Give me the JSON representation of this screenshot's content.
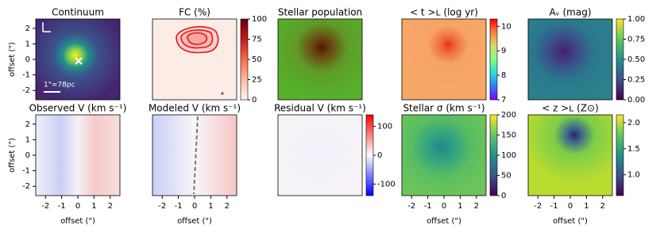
{
  "chart_data": [
    {
      "type": "image",
      "title": "Continuum",
      "ylabel": "offset (\")",
      "xlim": [
        -2.6,
        2.6
      ],
      "ylim": [
        -2.6,
        2.6
      ],
      "yticks": [
        -2,
        -1,
        0,
        1,
        2
      ],
      "annotations": [
        "1\"=78pc"
      ]
    },
    {
      "type": "image",
      "title": "FC (%)",
      "xlim": [
        -2.6,
        2.6
      ],
      "ylim": [
        -2.6,
        2.6
      ],
      "colorbar": {
        "lim": [
          0,
          100
        ],
        "ticks": [
          0,
          25,
          50,
          75,
          100
        ],
        "colors": [
          "#fff5f0",
          "#fcbba1",
          "#fb6a4a",
          "#cb181d",
          "#67000d"
        ]
      }
    },
    {
      "type": "image",
      "title": "Stellar population",
      "xlim": [
        -2.6,
        2.6
      ],
      "ylim": [
        -2.6,
        2.6
      ]
    },
    {
      "type": "image",
      "title": "< t >ʟ (log yr)",
      "xlim": [
        -2.6,
        2.6
      ],
      "ylim": [
        -2.6,
        2.6
      ],
      "colorbar": {
        "lim": [
          7,
          10.3
        ],
        "ticks": [
          7,
          8,
          9,
          10
        ],
        "colors": [
          "#8000ff",
          "#2c7ef7",
          "#2adddd",
          "#80ff80",
          "#d4dd6e",
          "#ff8040",
          "#ff0000"
        ]
      }
    },
    {
      "type": "image",
      "title": "Aᵥ (mag)",
      "xlim": [
        -2.6,
        2.6
      ],
      "ylim": [
        -2.6,
        2.6
      ],
      "colorbar": {
        "lim": [
          0,
          1
        ],
        "ticks": [
          {
            "value": 0,
            "label": "0.00"
          },
          {
            "value": 0.25,
            "label": "0.25"
          },
          {
            "value": 0.5,
            "label": "0.50"
          },
          {
            "value": 0.75,
            "label": "0.75"
          },
          {
            "value": 1,
            "label": "1.00"
          }
        ],
        "colors": [
          "#440154",
          "#3b528b",
          "#21918c",
          "#5ec962",
          "#fde725"
        ]
      }
    },
    {
      "type": "image",
      "title": "Observed V (km s⁻¹)",
      "xlabel": "offset (\")",
      "ylabel": "offset (\")",
      "xlim": [
        -2.6,
        2.6
      ],
      "ylim": [
        -2.6,
        2.6
      ],
      "xticks": [
        -2,
        -1,
        0,
        1,
        2
      ],
      "yticks": [
        -2,
        -1,
        0,
        1,
        2
      ]
    },
    {
      "type": "image",
      "title": "Modeled V (km s⁻¹)",
      "xlabel": "offset (\")",
      "xlim": [
        -2.6,
        2.6
      ],
      "ylim": [
        -2.6,
        2.6
      ],
      "xticks": [
        -2,
        -1,
        0,
        1,
        2
      ]
    },
    {
      "type": "image",
      "title": "Residual V (km s⁻¹)",
      "xlim": [
        -2.6,
        2.6
      ],
      "ylim": [
        -2.6,
        2.6
      ],
      "colorbar": {
        "lim": [
          -140,
          140
        ],
        "ticks": [
          -100,
          0,
          100
        ],
        "colors": [
          "#0000ff",
          "#ffffff",
          "#ff0000"
        ]
      }
    },
    {
      "type": "image",
      "title": "Stellar σ (km s⁻¹)",
      "xlabel": "offset (\")",
      "xlim": [
        -2.6,
        2.6
      ],
      "ylim": [
        -2.6,
        2.6
      ],
      "xticks": [
        -2,
        -1,
        0,
        1,
        2
      ],
      "colorbar": {
        "lim": [
          0,
          200
        ],
        "ticks": [
          0,
          50,
          100,
          150,
          200
        ],
        "colors": [
          "#440154",
          "#3b528b",
          "#21918c",
          "#5ec962",
          "#fde725"
        ]
      }
    },
    {
      "type": "image",
      "title": "< z >ʟ (Z⊙)",
      "xlabel": "offset (\")",
      "xlim": [
        -2.6,
        2.6
      ],
      "ylim": [
        -2.6,
        2.6
      ],
      "xticks": [
        -2,
        -1,
        0,
        1,
        2
      ],
      "colorbar": {
        "lim": [
          0.6,
          2.15
        ],
        "ticks": [
          {
            "value": 1,
            "label": "1.0"
          },
          {
            "value": 1.5,
            "label": "1.5"
          },
          {
            "value": 2,
            "label": "2.0"
          }
        ],
        "colors": [
          "#440154",
          "#3b528b",
          "#21918c",
          "#5ec962",
          "#fde725"
        ]
      }
    }
  ]
}
